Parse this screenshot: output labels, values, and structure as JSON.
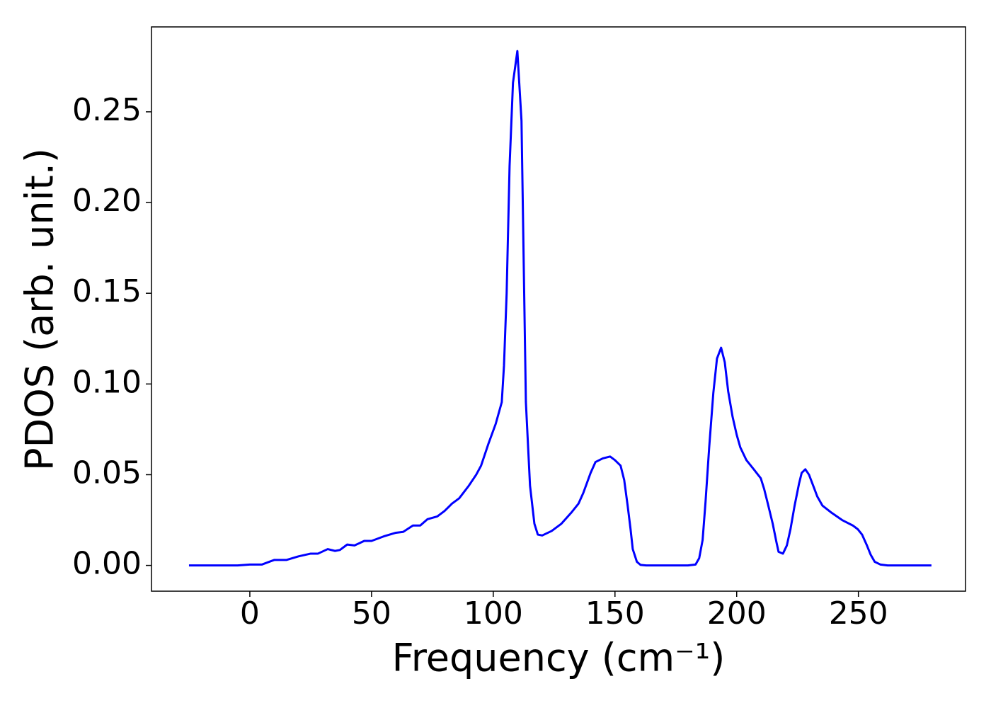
{
  "chart_data": {
    "type": "line",
    "xlabel": "Frequency (cm⁻¹)",
    "ylabel": "PDOS (arb. unit.)",
    "x": [
      -25,
      -5,
      0,
      5,
      10,
      15,
      20,
      25,
      28,
      32,
      35,
      37,
      40,
      43,
      47,
      50,
      55,
      60,
      63,
      67,
      70,
      73,
      77,
      80,
      83,
      86,
      90,
      93,
      95,
      98,
      101,
      103.5,
      104.4,
      105.5,
      106.7,
      108.1,
      109.9,
      111.6,
      113.4,
      115.1,
      116.9,
      118.3,
      120.1,
      124,
      128,
      132,
      135,
      137,
      140,
      142,
      145,
      148,
      150,
      152.3,
      153.8,
      155.2,
      156.4,
      157.3,
      159,
      160.5,
      162.8,
      180,
      183.1,
      184.6,
      186,
      187.2,
      188.7,
      190.4,
      191.9,
      193.6,
      195.1,
      196.5,
      198.3,
      200,
      201.5,
      204,
      207,
      209.9,
      211.3,
      212.8,
      214.8,
      216.3,
      217.2,
      219,
      220.6,
      222.1,
      223.8,
      225.6,
      226.7,
      228.2,
      229.7,
      231.7,
      233.1,
      235.2,
      239,
      243.3,
      247.7,
      249.7,
      251.5,
      253.5,
      255,
      256.7,
      259,
      262,
      280
    ],
    "series": [
      {
        "color": "#0000ff",
        "values": [
          0,
          0,
          0.0005,
          0.0005,
          0.003,
          0.003,
          0.005,
          0.0065,
          0.0065,
          0.009,
          0.008,
          0.0085,
          0.0115,
          0.011,
          0.0135,
          0.0135,
          0.016,
          0.018,
          0.0185,
          0.022,
          0.022,
          0.0255,
          0.027,
          0.03,
          0.034,
          0.037,
          0.044,
          0.05,
          0.055,
          0.067,
          0.078,
          0.09,
          0.11,
          0.15,
          0.22,
          0.266,
          0.2835,
          0.245,
          0.09,
          0.044,
          0.023,
          0.017,
          0.0165,
          0.019,
          0.023,
          0.029,
          0.034,
          0.04,
          0.051,
          0.057,
          0.059,
          0.06,
          0.058,
          0.055,
          0.047,
          0.033,
          0.02,
          0.009,
          0.002,
          0.0003,
          0,
          0,
          0.0005,
          0.004,
          0.014,
          0.035,
          0.065,
          0.095,
          0.114,
          0.12,
          0.112,
          0.096,
          0.082,
          0.072,
          0.065,
          0.058,
          0.053,
          0.048,
          0.042,
          0.034,
          0.023,
          0.013,
          0.0075,
          0.0065,
          0.011,
          0.02,
          0.033,
          0.045,
          0.051,
          0.053,
          0.05,
          0.043,
          0.038,
          0.033,
          0.029,
          0.025,
          0.022,
          0.02,
          0.017,
          0.011,
          0.006,
          0.002,
          0.0005,
          0,
          0
        ]
      }
    ],
    "xlim": [
      -40.4,
      294
    ],
    "ylim": [
      -0.0142,
      0.2968
    ],
    "xticks": [
      0,
      50,
      100,
      150,
      200,
      250
    ],
    "yticks": [
      {
        "value": 0,
        "label": "0.00"
      },
      {
        "value": 0.05,
        "label": "0.05"
      },
      {
        "value": 0.1,
        "label": "0.10"
      },
      {
        "value": 0.15,
        "label": "0.15"
      },
      {
        "value": 0.2,
        "label": "0.20"
      },
      {
        "value": 0.25,
        "label": "0.25"
      }
    ],
    "grid": false
  }
}
